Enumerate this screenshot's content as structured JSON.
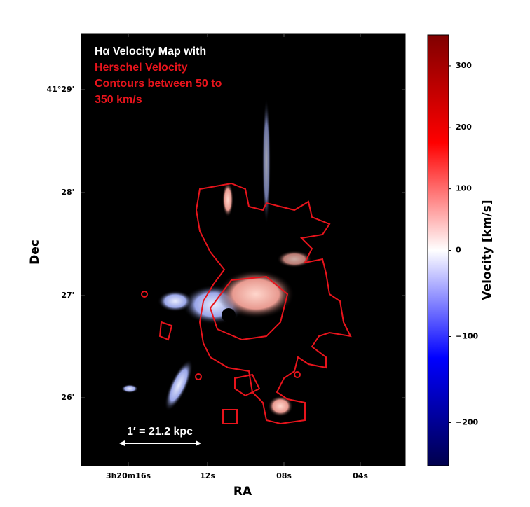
{
  "chart_data": {
    "type": "velocity-map",
    "annotation_white": [
      "Hα Velocity Map with"
    ],
    "annotation_red": [
      "Herschel Velocity",
      "Contours between 50 to",
      "350 km/s"
    ],
    "xlabel": "RA",
    "ylabel": "Dec",
    "xtick_labels": [
      "3h20m16s",
      "12s",
      "08s",
      "04s"
    ],
    "ytick_labels": [
      "41°29'",
      "28'",
      "27'",
      "26'"
    ],
    "scale_bar_label": "1′ = 21.2 kpc",
    "colorbar": {
      "label": "Velocity [km/s]",
      "norm": "two-slope",
      "vcenter": 0,
      "clim": [
        -250,
        350
      ],
      "ticks": [
        300,
        200,
        100,
        0,
        {
          "value": -100,
          "label": "−100"
        },
        {
          "value": -200,
          "label": "−200"
        }
      ]
    }
  }
}
